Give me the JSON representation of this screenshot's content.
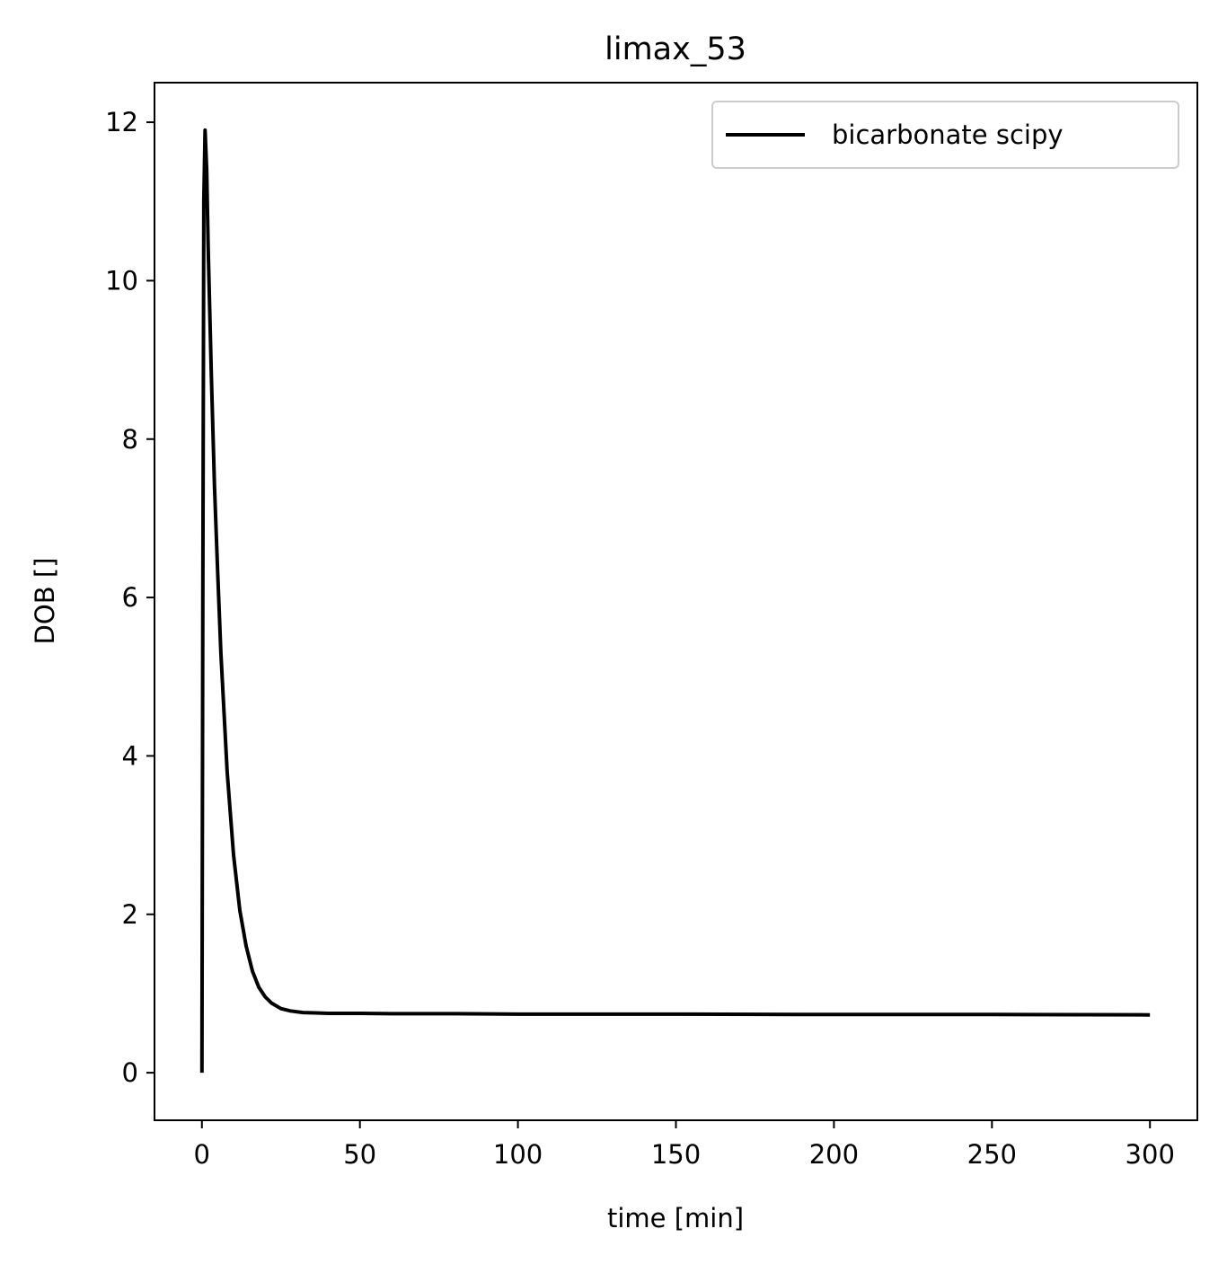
{
  "chart_data": {
    "type": "line",
    "title": "limax_53",
    "xlabel": "time [min]",
    "ylabel": "DOB []",
    "xlim": [
      -15,
      315
    ],
    "ylim": [
      -0.6,
      12.5
    ],
    "xticks": [
      0,
      50,
      100,
      150,
      200,
      250,
      300
    ],
    "yticks": [
      0,
      2,
      4,
      6,
      8,
      10,
      12
    ],
    "grid": false,
    "legend": {
      "position": "top-right",
      "entries": [
        "bicarbonate scipy"
      ]
    },
    "series": [
      {
        "name": "bicarbonate scipy",
        "color": "#000000",
        "x": [
          0,
          0.3,
          0.6,
          1,
          1.5,
          2,
          3,
          4,
          5,
          6,
          8,
          10,
          12,
          14,
          16,
          18,
          20,
          22,
          25,
          28,
          32,
          36,
          40,
          45,
          50,
          60,
          80,
          100,
          150,
          200,
          250,
          300
        ],
        "y": [
          0,
          6.0,
          11.0,
          11.9,
          11.4,
          10.4,
          8.8,
          7.4,
          6.3,
          5.3,
          3.8,
          2.75,
          2.05,
          1.6,
          1.28,
          1.08,
          0.96,
          0.88,
          0.81,
          0.78,
          0.76,
          0.755,
          0.75,
          0.75,
          0.75,
          0.745,
          0.745,
          0.74,
          0.74,
          0.735,
          0.735,
          0.73
        ]
      }
    ]
  }
}
